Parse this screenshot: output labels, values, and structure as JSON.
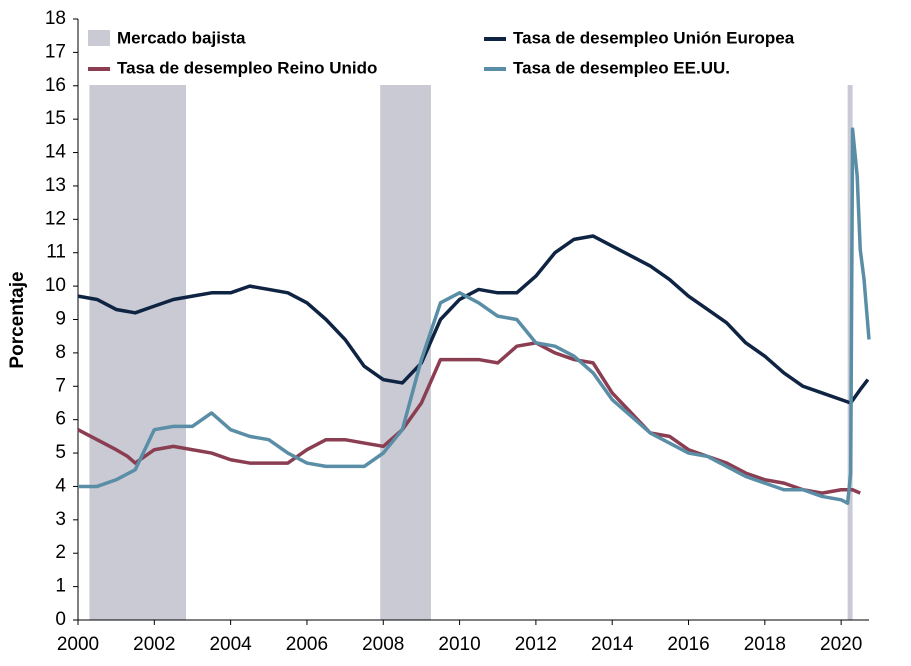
{
  "chart_data": {
    "type": "line",
    "y_label": "Porcentaje",
    "xlim": [
      2000,
      2020.73
    ],
    "xticks": [
      2000,
      2002,
      2004,
      2006,
      2008,
      2010,
      2012,
      2014,
      2016,
      2018,
      2020
    ],
    "ylim": [
      0,
      18
    ],
    "yticks": [
      0,
      1,
      2,
      3,
      4,
      5,
      6,
      7,
      8,
      9,
      10,
      11,
      12,
      13,
      14,
      15,
      16,
      17,
      18
    ],
    "shaded": {
      "name": "Mercado bajista",
      "color": "#c9cad3",
      "ranges": [
        [
          2000.3,
          2002.83
        ],
        [
          2007.92,
          2009.25
        ],
        [
          2020.17,
          2020.3
        ]
      ]
    },
    "series": [
      {
        "name": "Tasa de desempleo Unión Europea",
        "color": "#0e2442",
        "x": [
          2000,
          2000.5,
          2001,
          2001.5,
          2002,
          2002.5,
          2003,
          2003.5,
          2004,
          2004.5,
          2005,
          2005.5,
          2006,
          2006.5,
          2007,
          2007.5,
          2008,
          2008.5,
          2009,
          2009.5,
          2010,
          2010.5,
          2011,
          2011.5,
          2012,
          2012.5,
          2013,
          2013.5,
          2014,
          2014.5,
          2015,
          2015.5,
          2016,
          2016.5,
          2017,
          2017.5,
          2018,
          2018.5,
          2019,
          2019.5,
          2020,
          2020.25,
          2020.5,
          2020.7
        ],
        "values": [
          9.7,
          9.6,
          9.3,
          9.2,
          9.4,
          9.6,
          9.7,
          9.8,
          9.8,
          10.0,
          9.9,
          9.8,
          9.5,
          9.0,
          8.4,
          7.6,
          7.2,
          7.1,
          7.7,
          9.0,
          9.6,
          9.9,
          9.8,
          9.8,
          10.3,
          11.0,
          11.4,
          11.5,
          11.2,
          10.9,
          10.6,
          10.2,
          9.7,
          9.3,
          8.9,
          8.3,
          7.9,
          7.4,
          7.0,
          6.8,
          6.6,
          6.5,
          6.9,
          7.2
        ]
      },
      {
        "name": "Tasa de desempleo Reino Unido",
        "color": "#8b3e52",
        "x": [
          2000,
          2000.5,
          2001,
          2001.3,
          2001.5,
          2002,
          2002.5,
          2003,
          2003.5,
          2004,
          2004.5,
          2005,
          2005.5,
          2006,
          2006.5,
          2007,
          2007.5,
          2008,
          2008.5,
          2009,
          2009.5,
          2010,
          2010.5,
          2011,
          2011.5,
          2012,
          2012.5,
          2013,
          2013.5,
          2014,
          2014.5,
          2015,
          2015.5,
          2016,
          2016.5,
          2017,
          2017.5,
          2018,
          2018.5,
          2019,
          2019.5,
          2020,
          2020.3,
          2020.5
        ],
        "values": [
          5.7,
          5.4,
          5.1,
          4.9,
          4.7,
          5.1,
          5.2,
          5.1,
          5.0,
          4.8,
          4.7,
          4.7,
          4.7,
          5.1,
          5.4,
          5.4,
          5.3,
          5.2,
          5.7,
          6.5,
          7.8,
          7.8,
          7.8,
          7.7,
          8.2,
          8.3,
          8.0,
          7.8,
          7.7,
          6.8,
          6.2,
          5.6,
          5.5,
          5.1,
          4.9,
          4.7,
          4.4,
          4.2,
          4.1,
          3.9,
          3.8,
          3.9,
          3.9,
          3.8
        ]
      },
      {
        "name": "Tasa de desempleo EE.UU.",
        "color": "#5a8ea6",
        "x": [
          2000,
          2000.5,
          2001,
          2001.5,
          2002,
          2002.5,
          2003,
          2003.5,
          2004,
          2004.5,
          2005,
          2005.5,
          2006,
          2006.5,
          2007,
          2007.5,
          2008,
          2008.5,
          2009,
          2009.5,
          2010,
          2010.5,
          2011,
          2011.5,
          2012,
          2012.5,
          2013,
          2013.5,
          2014,
          2014.5,
          2015,
          2015.5,
          2016,
          2016.5,
          2017,
          2017.5,
          2018,
          2018.5,
          2019,
          2019.5,
          2020,
          2020.17,
          2020.25,
          2020.3,
          2020.42,
          2020.5,
          2020.6,
          2020.73
        ],
        "values": [
          4.0,
          4.0,
          4.2,
          4.5,
          5.7,
          5.8,
          5.8,
          6.2,
          5.7,
          5.5,
          5.4,
          5.0,
          4.7,
          4.6,
          4.6,
          4.6,
          5.0,
          5.7,
          7.8,
          9.5,
          9.8,
          9.5,
          9.1,
          9.0,
          8.3,
          8.2,
          7.9,
          7.4,
          6.6,
          6.1,
          5.6,
          5.3,
          5.0,
          4.9,
          4.6,
          4.3,
          4.1,
          3.9,
          3.9,
          3.7,
          3.6,
          3.5,
          4.4,
          14.7,
          13.3,
          11.1,
          10.2,
          8.4
        ]
      }
    ]
  }
}
